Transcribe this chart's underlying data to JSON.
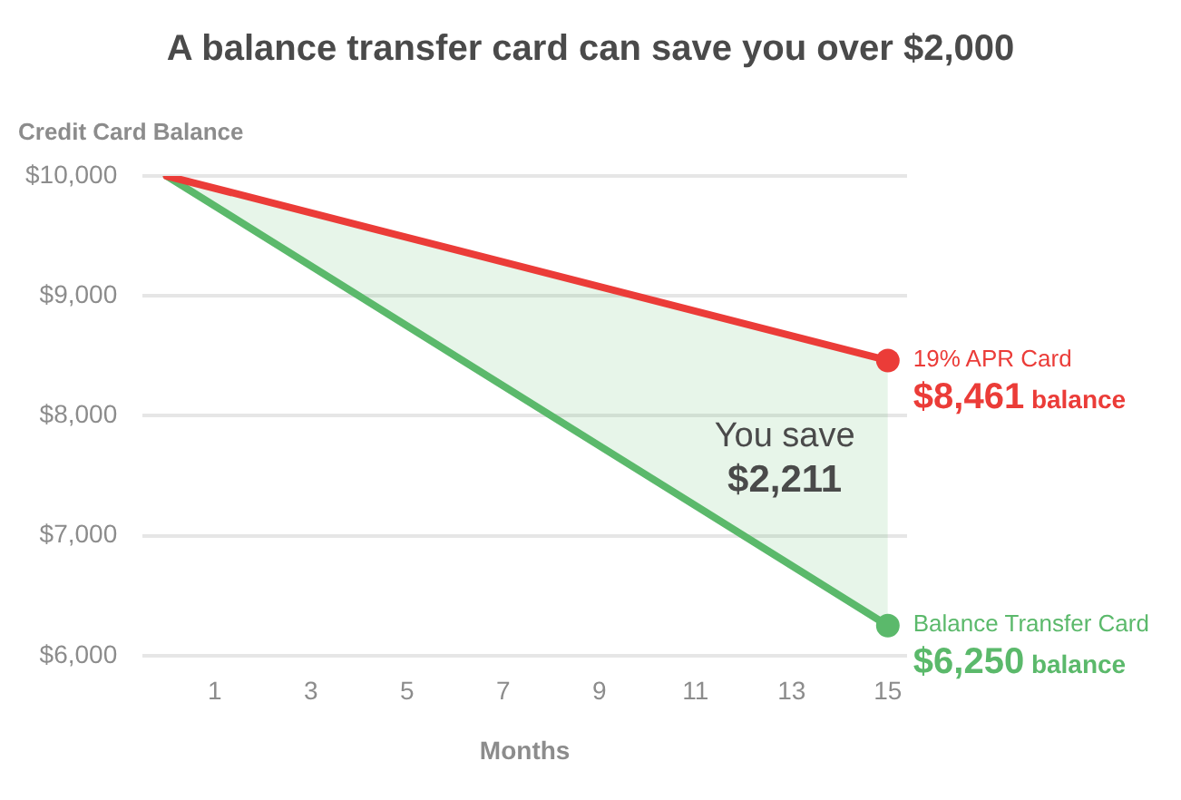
{
  "chart_data": {
    "type": "line",
    "title": "A balance transfer card can save you over $2,000",
    "xlabel": "Months",
    "ylabel": "Credit Card Balance",
    "x": [
      0,
      15
    ],
    "series": [
      {
        "name": "19% APR Card",
        "color": "#eb3c38",
        "values": [
          10000,
          8461
        ],
        "value_labels": [
          null,
          "$8,461 balance"
        ]
      },
      {
        "name": "Balance Transfer Card",
        "type": "area",
        "color": "#5bb96b",
        "values": [
          10000,
          6250
        ],
        "value_labels": [
          null,
          "$6,250 balance"
        ]
      }
    ],
    "xlim": [
      -0.5,
      15.4
    ],
    "xticks": [
      1,
      3,
      5,
      7,
      9,
      11,
      13,
      15
    ],
    "ylim": [
      6000,
      10000
    ],
    "yticks": [
      {
        "value": 6000,
        "label": "$6,000"
      },
      {
        "value": 7000,
        "label": "$7,000"
      },
      {
        "value": 8000,
        "label": "$8,000"
      },
      {
        "value": 9000,
        "label": "$9,000"
      },
      {
        "value": 10000,
        "label": "$10,000"
      }
    ],
    "annotations": [
      "You save $2,211"
    ],
    "grid": "y",
    "legend": false,
    "marker": "circle"
  }
}
